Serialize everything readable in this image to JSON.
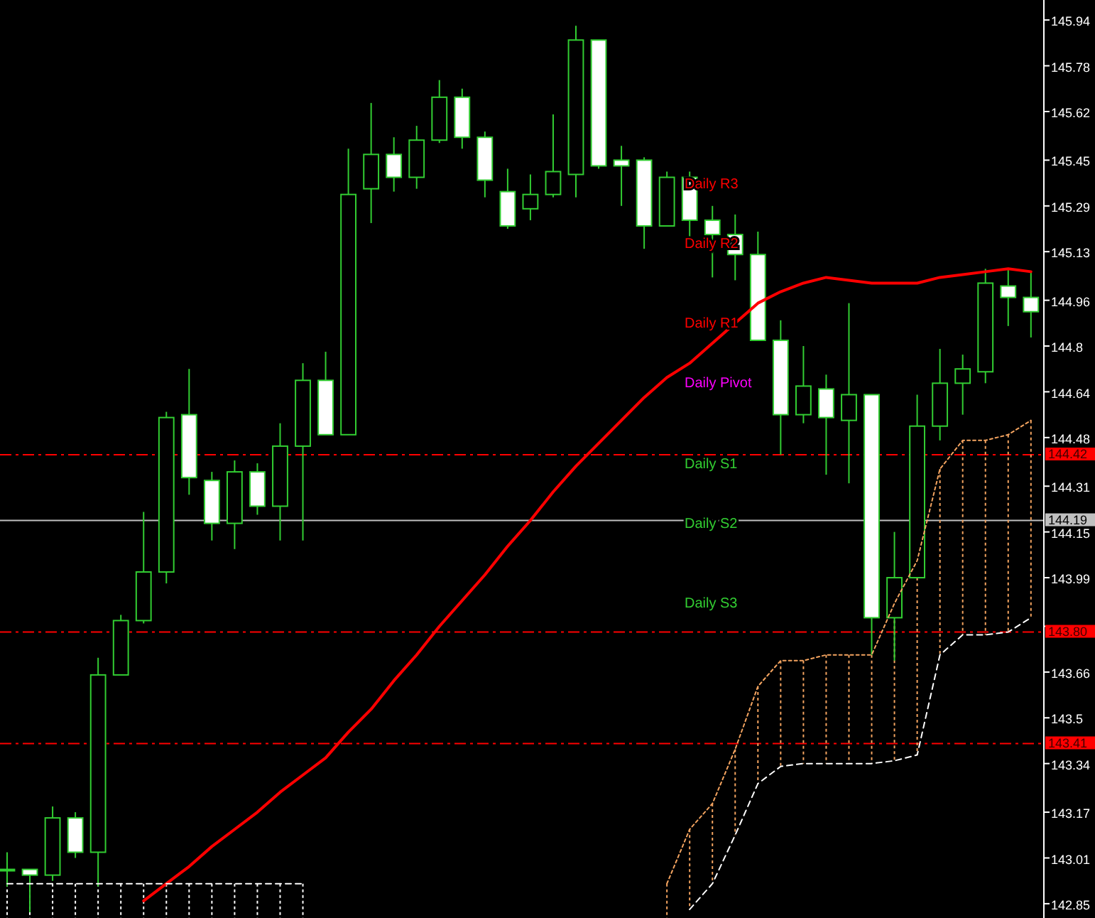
{
  "chart_data": {
    "type": "candlestick",
    "color": "#32cd32",
    "tick_labels": "y",
    "categories": [
      null,
      null,
      null,
      null,
      null,
      null,
      null,
      null,
      null,
      null,
      null,
      null,
      null,
      null,
      null,
      null,
      null,
      null,
      null,
      null,
      null,
      null,
      null,
      null,
      null,
      null,
      null,
      null,
      null,
      null,
      null,
      null,
      null,
      null,
      null,
      null,
      null,
      null,
      null,
      null,
      null,
      null,
      null,
      null,
      null,
      null
    ],
    "ohlc": [
      [
        142.97,
        143.03,
        142.91,
        142.97
      ],
      [
        142.97,
        142.97,
        142.82,
        142.95
      ],
      [
        142.95,
        143.19,
        142.93,
        143.15
      ],
      [
        143.15,
        143.17,
        143.01,
        143.03
      ],
      [
        143.03,
        143.71,
        142.91,
        143.65
      ],
      [
        143.65,
        143.86,
        143.65,
        143.84
      ],
      [
        143.84,
        144.22,
        143.83,
        144.01
      ],
      [
        144.01,
        144.57,
        143.97,
        144.55
      ],
      [
        144.56,
        144.72,
        144.28,
        144.34
      ],
      [
        144.33,
        144.36,
        144.12,
        144.18
      ],
      [
        144.18,
        144.4,
        144.09,
        144.36
      ],
      [
        144.36,
        144.39,
        144.21,
        144.24
      ],
      [
        144.24,
        144.53,
        144.12,
        144.45
      ],
      [
        144.45,
        144.74,
        144.12,
        144.68
      ],
      [
        144.68,
        144.78,
        144.49,
        144.49
      ],
      [
        144.49,
        145.49,
        144.49,
        145.33
      ],
      [
        145.35,
        145.65,
        145.23,
        145.47
      ],
      [
        145.47,
        145.53,
        145.34,
        145.39
      ],
      [
        145.39,
        145.57,
        145.35,
        145.52
      ],
      [
        145.52,
        145.73,
        145.51,
        145.67
      ],
      [
        145.67,
        145.7,
        145.49,
        145.53
      ],
      [
        145.53,
        145.55,
        145.32,
        145.38
      ],
      [
        145.34,
        145.42,
        145.21,
        145.22
      ],
      [
        145.28,
        145.4,
        145.24,
        145.33
      ],
      [
        145.33,
        145.61,
        145.32,
        145.41
      ],
      [
        145.4,
        145.92,
        145.32,
        145.87
      ],
      [
        145.87,
        145.87,
        145.42,
        145.43
      ],
      [
        145.45,
        145.5,
        145.29,
        145.43
      ],
      [
        145.45,
        145.46,
        145.14,
        145.22
      ],
      [
        145.22,
        145.41,
        145.22,
        145.39
      ],
      [
        145.39,
        145.41,
        145.18,
        145.24
      ],
      [
        145.24,
        145.29,
        145.04,
        145.19
      ],
      [
        145.19,
        145.26,
        145.03,
        145.12
      ],
      [
        145.12,
        145.2,
        144.82,
        144.82
      ],
      [
        144.82,
        144.89,
        144.42,
        144.56
      ],
      [
        144.56,
        144.8,
        144.53,
        144.66
      ],
      [
        144.65,
        144.7,
        144.35,
        144.55
      ],
      [
        144.54,
        144.95,
        144.32,
        144.63
      ],
      [
        144.63,
        144.63,
        143.72,
        143.85
      ],
      [
        143.85,
        144.15,
        143.7,
        143.99
      ],
      [
        143.99,
        144.63,
        143.99,
        144.52
      ],
      [
        144.52,
        144.79,
        144.47,
        144.67
      ],
      [
        144.67,
        144.77,
        144.56,
        144.72
      ],
      [
        144.71,
        145.07,
        144.67,
        145.02
      ],
      [
        145.01,
        145.07,
        144.87,
        144.97
      ],
      [
        144.97,
        145.06,
        144.83,
        144.92
      ]
    ],
    "series": [
      {
        "type": "line",
        "color": "#ff0000",
        "line_style": "solid",
        "values": [
          null,
          null,
          null,
          null,
          null,
          null,
          142.86,
          142.92,
          142.98,
          143.05,
          143.11,
          143.17,
          143.24,
          143.3,
          143.36,
          143.45,
          143.53,
          143.63,
          143.72,
          143.82,
          143.91,
          144.0,
          144.1,
          144.19,
          144.29,
          144.38,
          144.46,
          144.54,
          144.62,
          144.69,
          144.74,
          144.81,
          144.88,
          144.95,
          144.99,
          145.02,
          145.04,
          145.03,
          145.02,
          145.02,
          145.02,
          145.04,
          145.05,
          145.06,
          145.07,
          145.06
        ]
      },
      {
        "type": "line",
        "color": "#f4a460",
        "line_style": "dotted",
        "values": [
          null,
          null,
          null,
          null,
          null,
          null,
          null,
          null,
          null,
          null,
          null,
          null,
          null,
          null,
          null,
          null,
          null,
          null,
          null,
          null,
          null,
          null,
          null,
          null,
          null,
          null,
          null,
          null,
          null,
          142.92,
          143.11,
          143.2,
          143.39,
          143.61,
          143.7,
          143.7,
          143.72,
          143.72,
          143.72,
          143.9,
          144.05,
          144.37,
          144.47,
          144.47,
          144.49,
          144.54
        ]
      },
      {
        "type": "line",
        "color": "#ffffff",
        "line_style": "dashed",
        "values": [
          142.92,
          142.92,
          142.92,
          142.92,
          142.92,
          142.92,
          142.92,
          142.92,
          142.92,
          142.92,
          142.92,
          142.92,
          142.92,
          142.92,
          null,
          null,
          null,
          null,
          null,
          null,
          null,
          null,
          null,
          null,
          null,
          null,
          null,
          null,
          null,
          null,
          142.83,
          142.92,
          143.09,
          143.27,
          143.33,
          143.34,
          143.34,
          143.34,
          143.34,
          143.35,
          143.37,
          143.72,
          143.79,
          143.79,
          143.8,
          143.85
        ]
      }
    ],
    "ylim": [
      142.8,
      146.01
    ],
    "yticks": [
      145.94,
      145.78,
      145.62,
      145.45,
      145.29,
      145.13,
      144.96,
      144.8,
      144.64,
      144.48,
      144.31,
      144.15,
      143.99,
      {
        "value": 143.82,
        "label": null
      },
      143.66,
      143.5,
      143.34,
      143.17,
      143.01,
      142.85
    ],
    "ref_lines": [
      {
        "axis": "y",
        "value": 144.42,
        "label": "144.42",
        "color": "#ff0000",
        "line_style": "dashed"
      },
      {
        "axis": "y",
        "value": 143.8,
        "label": "143.80",
        "color": "#ff0000",
        "line_style": "dashed"
      },
      {
        "axis": "y",
        "value": 143.41,
        "label": "143.41",
        "color": "#ff0000",
        "line_style": "dashed"
      },
      {
        "axis": "y",
        "value": 144.19,
        "label": "144.19",
        "color": "#c0c0c0",
        "line_style": "solid"
      }
    ],
    "annotations": [
      "Daily R3",
      "Daily R2",
      "Daily R1",
      "Daily Pivot",
      "Daily S1",
      "Daily S2",
      "Daily S3"
    ]
  }
}
